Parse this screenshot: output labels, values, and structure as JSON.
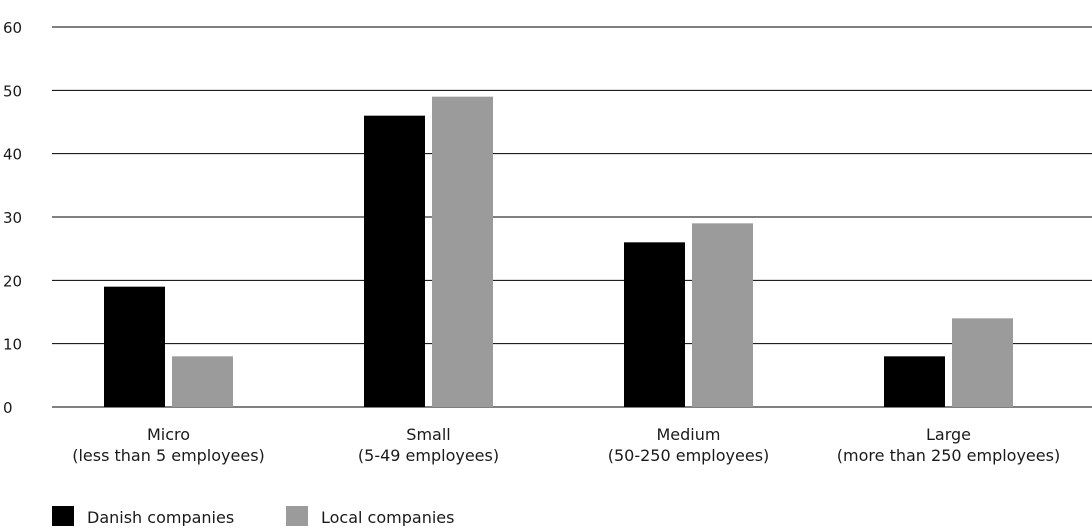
{
  "chart_data": {
    "type": "bar",
    "categories": [
      [
        "Micro",
        "(less than 5 employees)"
      ],
      [
        "Small",
        "(5-49 employees)"
      ],
      [
        "Medium",
        "(50-250 employees)"
      ],
      [
        "Large",
        "(more than 250 employees)"
      ]
    ],
    "series": [
      {
        "name": "Danish companies",
        "values": [
          19,
          46,
          26,
          8
        ],
        "color": "#000000"
      },
      {
        "name": "Local companies",
        "values": [
          8,
          49,
          29,
          14
        ],
        "color": "#9b9b9b"
      }
    ],
    "ylim": [
      0,
      60
    ],
    "yticks": [
      0,
      10,
      20,
      30,
      40,
      50,
      60
    ],
    "grid": true,
    "legend_position": "bottom-left",
    "title": "",
    "xlabel": "",
    "ylabel": ""
  }
}
